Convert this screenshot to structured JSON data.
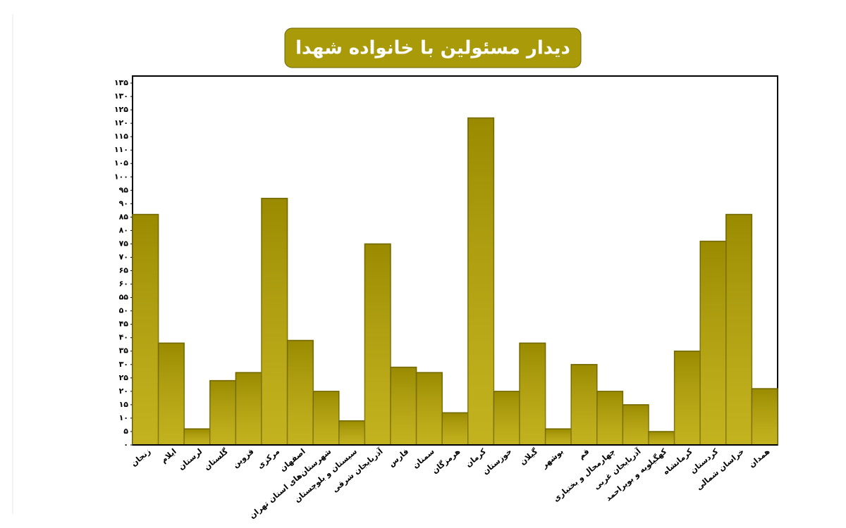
{
  "chart_data": {
    "type": "bar",
    "title": "دیدار مسئولین با خانواده شهدا",
    "categories": [
      "زنجان",
      "ایلام",
      "لرستان",
      "گلستان",
      "قزوین",
      "مرکزی",
      "اصفهان",
      "شهرستان‌های استان تهران",
      "سیستان و بلوچستان",
      "آذربایجان شرقی",
      "فارس",
      "سمنان",
      "هرمزگان",
      "کرمان",
      "خوزستان",
      "گیلان",
      "بوشهر",
      "قم",
      "چهارمحال و بختیاری",
      "آذربایجان غربی",
      "کهگیلویه و بویراحمد",
      "کرمانشاه",
      "کردستان",
      "خراسان شمالی",
      "همدان"
    ],
    "values": [
      86,
      38,
      6,
      24,
      27,
      92,
      39,
      20,
      9,
      75,
      29,
      27,
      12,
      122,
      20,
      38,
      6,
      30,
      20,
      15,
      5,
      35,
      76,
      86,
      21
    ],
    "color": "#bba800",
    "ylim": [
      0,
      135
    ],
    "yticks": [
      {
        "value": 0,
        "label": "۰"
      },
      {
        "value": 5,
        "label": "۵"
      },
      {
        "value": 10,
        "label": "۱۰"
      },
      {
        "value": 15,
        "label": "۱۵"
      },
      {
        "value": 20,
        "label": "۲۰"
      },
      {
        "value": 25,
        "label": "۲۵"
      },
      {
        "value": 30,
        "label": "۳۰"
      },
      {
        "value": 35,
        "label": "۳۵"
      },
      {
        "value": 40,
        "label": "۴۰"
      },
      {
        "value": 45,
        "label": "۴۵"
      },
      {
        "value": 50,
        "label": "۵۰"
      },
      {
        "value": 55,
        "label": "۵۵"
      },
      {
        "value": 60,
        "label": "۶۰"
      },
      {
        "value": 65,
        "label": "۶۵"
      },
      {
        "value": 70,
        "label": "۷۰"
      },
      {
        "value": 75,
        "label": "۷۵"
      },
      {
        "value": 80,
        "label": "۸۰"
      },
      {
        "value": 85,
        "label": "۸۵"
      },
      {
        "value": 90,
        "label": "۹۰"
      },
      {
        "value": 95,
        "label": "۹۵"
      },
      {
        "value": 100,
        "label": "۱۰۰"
      },
      {
        "value": 105,
        "label": "۱۰۵"
      },
      {
        "value": 110,
        "label": "۱۱۰"
      },
      {
        "value": 115,
        "label": "۱۱۵"
      },
      {
        "value": 120,
        "label": "۱۲۰"
      },
      {
        "value": 125,
        "label": "۱۲۵"
      },
      {
        "value": 130,
        "label": "۱۳۰"
      },
      {
        "value": 135,
        "label": "۱۳۵"
      }
    ],
    "grid": false
  }
}
